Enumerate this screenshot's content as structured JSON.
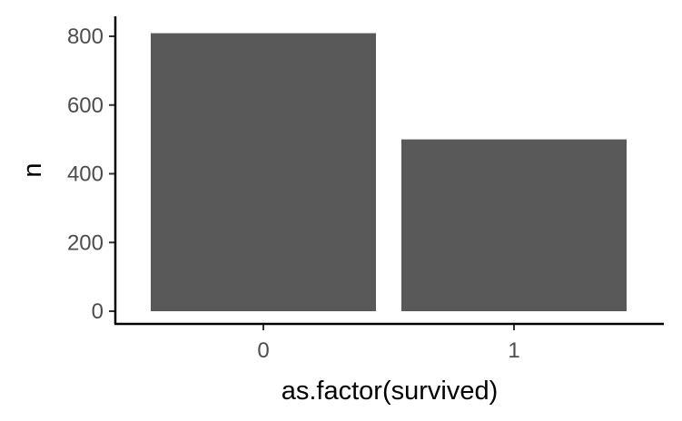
{
  "chart_data": {
    "type": "bar",
    "title": "",
    "xlabel": "as.factor(survived)",
    "ylabel": "n",
    "categories": [
      "0",
      "1"
    ],
    "values": [
      809,
      500
    ],
    "ylim": [
      0,
      850
    ],
    "y_ticks": [
      0,
      200,
      400,
      600,
      800
    ],
    "y_tick_labels": [
      "0",
      "200",
      "400",
      "600",
      "800"
    ],
    "grid": false,
    "legend": "none",
    "colors": {
      "bar": "#595959",
      "axis": "#000000",
      "tick_text": "#4d4d4d",
      "background": "#ffffff"
    }
  }
}
